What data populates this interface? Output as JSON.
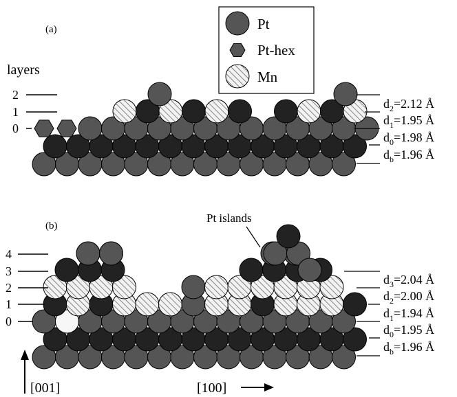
{
  "legend": {
    "items": [
      {
        "symbol": "circle",
        "label": "Pt"
      },
      {
        "symbol": "hexagon",
        "label": "Pt-hex"
      },
      {
        "symbol": "hatched-circle",
        "label": "Mn"
      }
    ]
  },
  "panel_a": {
    "tag": "(a)",
    "layers_title": "layers",
    "layer_numbers": [
      "2",
      "1",
      "0"
    ],
    "spacings": [
      {
        "d": "d",
        "sub": "2",
        "value": "=2.12 Å"
      },
      {
        "d": "d",
        "sub": "1",
        "value": "=1.95 Å"
      },
      {
        "d": "d",
        "sub": "0",
        "value": "=1.98 Å"
      },
      {
        "d": "d",
        "sub": "b",
        "value": "=1.96 Å"
      }
    ]
  },
  "panel_b": {
    "tag": "(b)",
    "annotation": "Pt islands",
    "layer_numbers": [
      "4",
      "3",
      "2",
      "1",
      "0"
    ],
    "spacings": [
      {
        "d": "d",
        "sub": "3",
        "value": "=2.04 Å"
      },
      {
        "d": "d",
        "sub": "2",
        "value": "=2.00 Å"
      },
      {
        "d": "d",
        "sub": "1",
        "value": "=1.94 Å"
      },
      {
        "d": "d",
        "sub": "0",
        "value": "=1.95 Å"
      },
      {
        "d": "d",
        "sub": "b",
        "value": "=1.96 Å"
      }
    ]
  },
  "axes": {
    "vertical": "[001]",
    "horizontal": "[100]"
  },
  "colors": {
    "pt": "#555555",
    "pt_dark": "#222222",
    "mn_hatch": "#777777",
    "mn_fill": "#f2f2f2"
  }
}
